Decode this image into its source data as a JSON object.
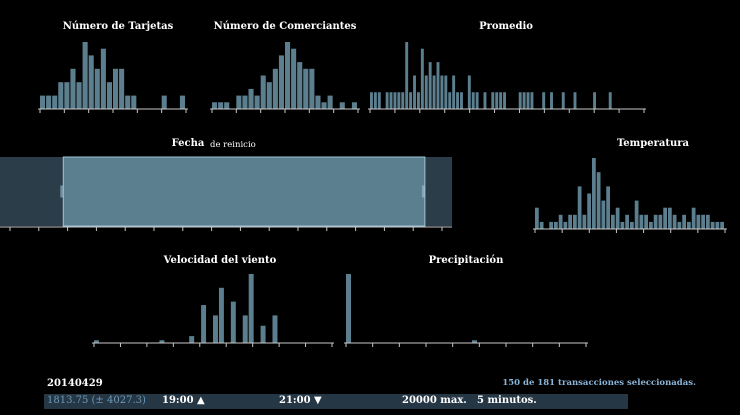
{
  "theme": {
    "background": "#000000",
    "bar_color": "#5c7f8f",
    "axis_color": "#c8c8c8",
    "selected_fill": "#5c7f8f",
    "unselected_fill": "#2a3d48"
  },
  "chart_data": [
    {
      "id": "tarjetas",
      "type": "bar",
      "title": "Número de Tarjetas",
      "values": [
        0.2,
        0.2,
        0.2,
        0.4,
        0.4,
        0.6,
        0.4,
        1.0,
        0.8,
        0.6,
        0.9,
        0.4,
        0.6,
        0.6,
        0.2,
        0.2,
        0,
        0,
        0,
        0,
        0.2,
        0,
        0,
        0.2
      ]
    },
    {
      "id": "comerciantes",
      "type": "bar",
      "title": "Número de Comerciantes",
      "values": [
        0.1,
        0.1,
        0.1,
        0,
        0.2,
        0.2,
        0.3,
        0.2,
        0.5,
        0.4,
        0.6,
        0.8,
        1.0,
        0.9,
        0.7,
        0.6,
        0.6,
        0.2,
        0.1,
        0.2,
        0,
        0.1,
        0,
        0.1
      ]
    },
    {
      "id": "promedio",
      "type": "bar",
      "title": "Promedio",
      "values": [
        0.25,
        0.25,
        0.25,
        0,
        0.25,
        0.25,
        0.25,
        0.25,
        0.25,
        1.0,
        0.25,
        0.5,
        0.25,
        0.9,
        0.5,
        0.7,
        0.5,
        0.7,
        0.5,
        0.5,
        0.25,
        0.5,
        0.25,
        0.25,
        0,
        0.5,
        0.25,
        0.25,
        0,
        0.25,
        0,
        0.25,
        0.25,
        0.25,
        0.25,
        0,
        0,
        0,
        0.25,
        0.25,
        0.25,
        0.25,
        0,
        0,
        0.25,
        0,
        0.25,
        0,
        0,
        0.25,
        0,
        0,
        0.25,
        0,
        0,
        0,
        0,
        0.25,
        0,
        0,
        0,
        0.25,
        0,
        0,
        0,
        0,
        0,
        0,
        0,
        0
      ]
    },
    {
      "id": "temperatura",
      "type": "bar",
      "title": "Temperatura",
      "values": [
        0.3,
        0.1,
        0,
        0.1,
        0.1,
        0.2,
        0.1,
        0.2,
        0.2,
        0.6,
        0.2,
        0.5,
        1.0,
        0.8,
        0.4,
        0.6,
        0.2,
        0.3,
        0.1,
        0.2,
        0.1,
        0.4,
        0.2,
        0.2,
        0.1,
        0.2,
        0.2,
        0.3,
        0.3,
        0.2,
        0.1,
        0.2,
        0.1,
        0.3,
        0.2,
        0.2,
        0.2,
        0.1,
        0.1,
        0.1
      ]
    },
    {
      "id": "viento",
      "type": "bar",
      "title": "Velocidad del viento",
      "values": [
        0.04,
        0,
        0,
        0,
        0,
        0,
        0,
        0,
        0,
        0,
        0,
        0.04,
        0,
        0,
        0,
        0,
        0.1,
        0,
        0.55,
        0,
        0.4,
        0.8,
        0,
        0.6,
        0,
        0.4,
        1.0,
        0,
        0.25,
        0,
        0.4,
        0,
        0,
        0,
        0,
        0,
        0,
        0,
        0,
        0
      ]
    },
    {
      "id": "precipitacion",
      "type": "bar",
      "title": "Precipitación",
      "values": [
        1.0,
        0,
        0,
        0,
        0,
        0,
        0,
        0,
        0,
        0,
        0,
        0,
        0,
        0,
        0,
        0,
        0,
        0,
        0,
        0,
        0,
        0.04,
        0,
        0,
        0,
        0,
        0,
        0,
        0,
        0,
        0,
        0,
        0,
        0,
        0,
        0,
        0,
        0,
        0,
        0
      ]
    },
    {
      "id": "fecha",
      "type": "area",
      "title": "Fecha",
      "reset_label": "de reinicio",
      "brush": [
        0.14,
        0.94
      ]
    }
  ],
  "footer": {
    "date": "20140429",
    "selection_summary": "150 de 181 transacciones seleccionadas.",
    "stat": "1813.75 (± 4027.3)",
    "time_start": "19:00 ▲",
    "time_end": "21:00 ▼",
    "max": "20000 max.",
    "interval": "5 minutos."
  }
}
